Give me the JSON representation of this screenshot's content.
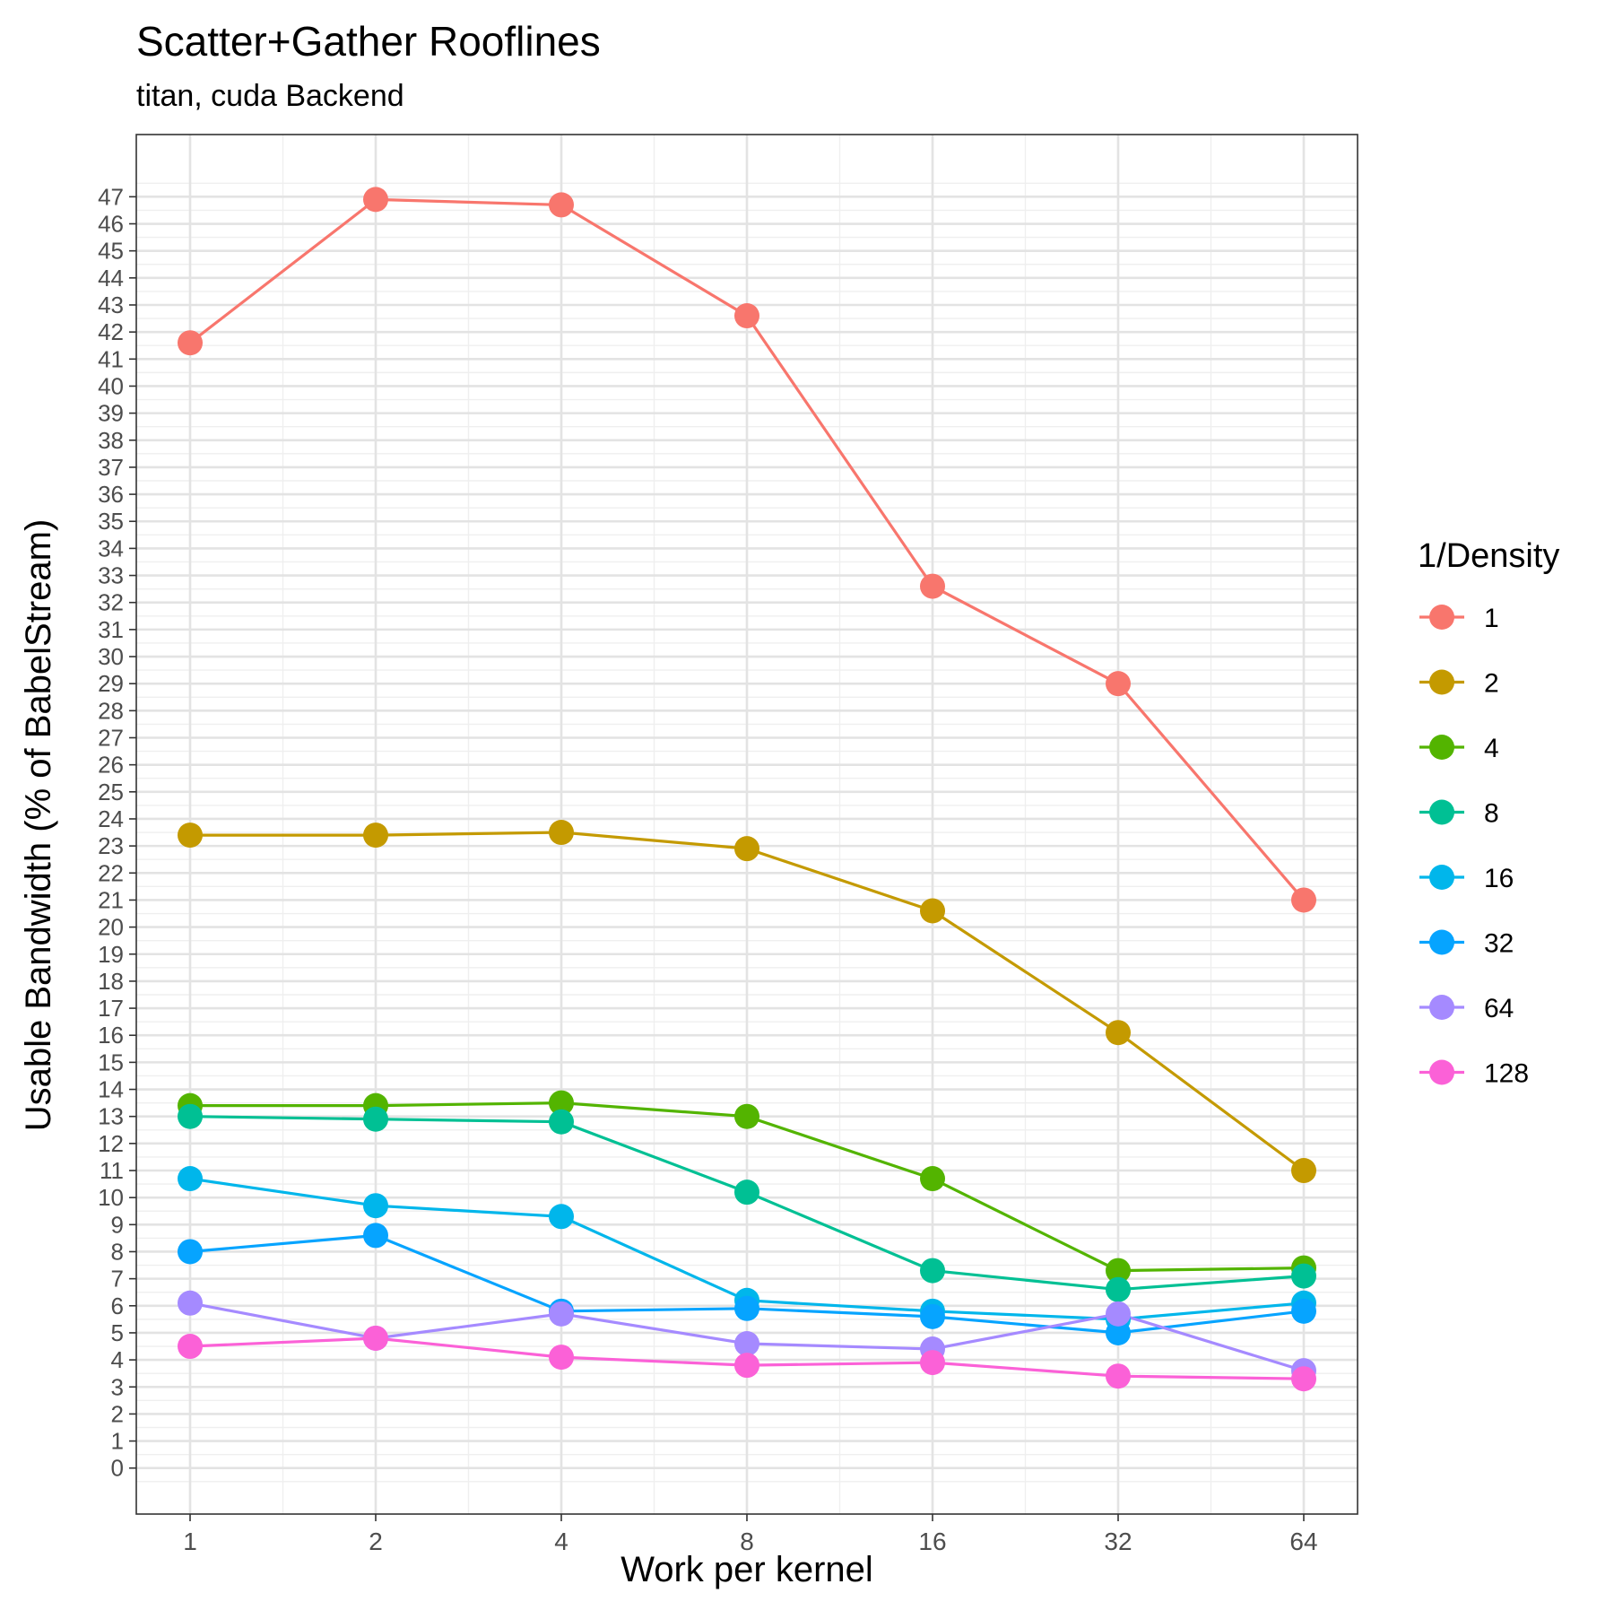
{
  "chart_data": {
    "type": "line",
    "title": "Scatter+Gather Rooflines",
    "subtitle": "titan, cuda Backend",
    "xlabel": "Work per kernel",
    "ylabel": "Usable Bandwidth (% of BabelStream)",
    "x_scale": "log2",
    "x": [
      1,
      2,
      4,
      8,
      16,
      32,
      64
    ],
    "x_tick_labels": [
      "1",
      "2",
      "4",
      "8",
      "16",
      "32",
      "64"
    ],
    "y_ticks": [
      0,
      1,
      2,
      3,
      4,
      5,
      6,
      7,
      8,
      9,
      10,
      11,
      12,
      13,
      14,
      15,
      16,
      17,
      18,
      19,
      20,
      21,
      22,
      23,
      24,
      25,
      26,
      27,
      28,
      29,
      30,
      31,
      32,
      33,
      34,
      35,
      36,
      37,
      38,
      39,
      40,
      41,
      42,
      43,
      44,
      45,
      46,
      47
    ],
    "ylim": [
      -1.7,
      49.3
    ],
    "grid": true,
    "legend": {
      "title": "1/Density",
      "position": "right"
    },
    "series": [
      {
        "name": "1",
        "color": "#F8766D",
        "values": [
          41.6,
          46.9,
          46.7,
          42.6,
          32.6,
          29.0,
          21.0
        ]
      },
      {
        "name": "2",
        "color": "#C49A00",
        "values": [
          23.4,
          23.4,
          23.5,
          22.9,
          20.6,
          16.1,
          11.0
        ]
      },
      {
        "name": "4",
        "color": "#53B400",
        "values": [
          13.4,
          13.4,
          13.5,
          13.0,
          10.7,
          7.3,
          7.4
        ]
      },
      {
        "name": "8",
        "color": "#00C094",
        "values": [
          13.0,
          12.9,
          12.8,
          10.2,
          7.3,
          6.6,
          7.1
        ]
      },
      {
        "name": "16",
        "color": "#00B6EB",
        "values": [
          10.7,
          9.7,
          9.3,
          6.2,
          5.8,
          5.5,
          6.1
        ]
      },
      {
        "name": "32",
        "color": "#06A4FF",
        "values": [
          8.0,
          8.6,
          5.8,
          5.9,
          5.6,
          5.0,
          5.8
        ]
      },
      {
        "name": "64",
        "color": "#A58AFF",
        "values": [
          6.1,
          4.8,
          5.7,
          4.6,
          4.4,
          5.7,
          3.6
        ]
      },
      {
        "name": "128",
        "color": "#FB61D7",
        "values": [
          4.5,
          4.8,
          4.1,
          3.8,
          3.9,
          3.4,
          3.3
        ]
      }
    ]
  }
}
